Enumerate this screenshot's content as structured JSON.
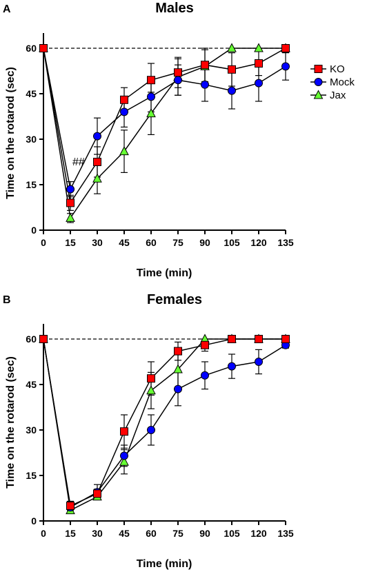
{
  "figure": {
    "panel_a_label": "A",
    "panel_b_label": "B"
  },
  "legend": {
    "entries": [
      "KO",
      "Mock",
      "Jax"
    ]
  },
  "colors": {
    "KO": "#ff0000",
    "Mock": "#0000ff",
    "Jax": "#66ff33",
    "axis": "#000000"
  },
  "chart_data": [
    {
      "type": "line",
      "title": "Males",
      "xlabel": "Time (min)",
      "ylabel": "Time on the rotarod (sec)",
      "x": [
        0,
        15,
        30,
        45,
        60,
        75,
        90,
        105,
        120,
        135
      ],
      "xlim": [
        0,
        135
      ],
      "ylim": [
        0,
        60
      ],
      "xticks": [
        0,
        15,
        30,
        45,
        60,
        75,
        90,
        105,
        120,
        135
      ],
      "yticks": [
        0,
        15,
        30,
        45,
        60
      ],
      "reference_line": 60,
      "annotations": [
        {
          "text": "##",
          "x": 15,
          "y": 23
        }
      ],
      "series": [
        {
          "name": "KO",
          "marker": "square",
          "values": [
            60,
            9,
            22.5,
            43,
            49.5,
            52,
            54.5,
            53,
            55,
            60
          ],
          "errors": [
            0,
            2.5,
            5,
            4,
            5.5,
            5,
            5.5,
            5.5,
            4,
            0
          ]
        },
        {
          "name": "Mock",
          "marker": "circle",
          "values": [
            60,
            13.5,
            31,
            39,
            44,
            49.5,
            48,
            46,
            48.5,
            54
          ],
          "errors": [
            0,
            2.5,
            6,
            5,
            5,
            5,
            5.5,
            6,
            6,
            4.5
          ]
        },
        {
          "name": "Jax",
          "marker": "triangle",
          "values": [
            60,
            4,
            17,
            26,
            38.5,
            50.5,
            54,
            60,
            60,
            60
          ],
          "errors": [
            0,
            1.5,
            5,
            7,
            7,
            6,
            5.5,
            0,
            0,
            0
          ]
        }
      ]
    },
    {
      "type": "line",
      "title": "Females",
      "xlabel": "Time (min)",
      "ylabel": "Time on the rotarod (sec)",
      "x": [
        0,
        15,
        30,
        45,
        60,
        75,
        90,
        105,
        120,
        135
      ],
      "xlim": [
        0,
        135
      ],
      "ylim": [
        0,
        60
      ],
      "xticks": [
        0,
        15,
        30,
        45,
        60,
        75,
        90,
        105,
        120,
        135
      ],
      "yticks": [
        0,
        15,
        30,
        45,
        60
      ],
      "reference_line": 60,
      "series": [
        {
          "name": "KO",
          "marker": "square",
          "values": [
            60,
            5,
            9,
            29.5,
            47,
            56,
            58,
            60,
            60,
            60
          ],
          "errors": [
            0,
            1.5,
            1.5,
            5.5,
            5.5,
            3,
            2,
            0,
            0,
            0
          ]
        },
        {
          "name": "Mock",
          "marker": "circle",
          "values": [
            60,
            4.5,
            9.5,
            21.5,
            30,
            43.5,
            48,
            51,
            52.5,
            58
          ],
          "errors": [
            0,
            1.5,
            2.5,
            3.5,
            5,
            5.5,
            4.5,
            4,
            4,
            1
          ]
        },
        {
          "name": "Jax",
          "marker": "triangle",
          "values": [
            60,
            3.5,
            8,
            19.5,
            43,
            50,
            60,
            60,
            60,
            60
          ],
          "errors": [
            0,
            1,
            1,
            4,
            6,
            6,
            0,
            0,
            0,
            0
          ]
        }
      ]
    }
  ]
}
